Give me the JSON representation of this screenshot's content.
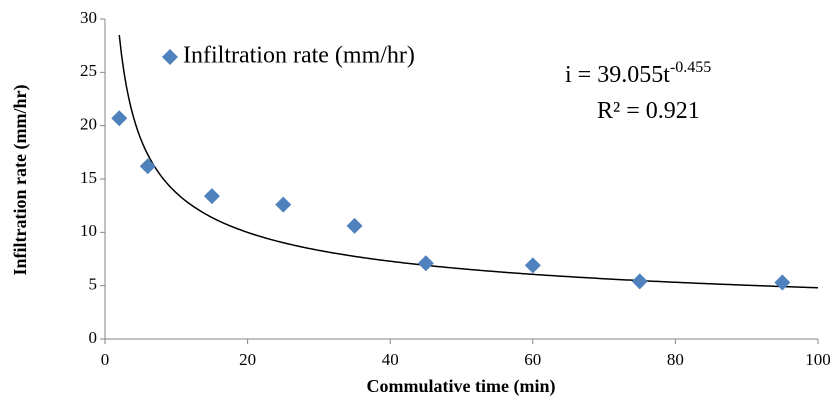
{
  "chart_data": {
    "type": "scatter",
    "x_label": "Commulative time (min)",
    "y_label": "Infiltration rate (mm/hr)",
    "series": [
      {
        "name": "Infiltration rate (mm/hr)",
        "color": "#4f81bd",
        "x": [
          2,
          6,
          15,
          25,
          35,
          45,
          60,
          75,
          95
        ],
        "values": [
          20.7,
          16.2,
          13.4,
          12.6,
          10.6,
          7.1,
          6.9,
          5.4,
          5.3
        ]
      }
    ],
    "xlim": [
      0,
      100
    ],
    "xticks": [
      0,
      20,
      40,
      60,
      80,
      100
    ],
    "ylim": [
      0,
      30
    ],
    "yticks": [
      0,
      5,
      10,
      15,
      20,
      25,
      30
    ],
    "grid": false,
    "legend": "top-left",
    "trendline": {
      "type": "power",
      "prefix": "i = ",
      "coefficient": 39.055,
      "variable": "t",
      "exponent": -0.455,
      "r2_prefix": "R² = ",
      "r2": 0.921,
      "color": "#000000"
    }
  }
}
